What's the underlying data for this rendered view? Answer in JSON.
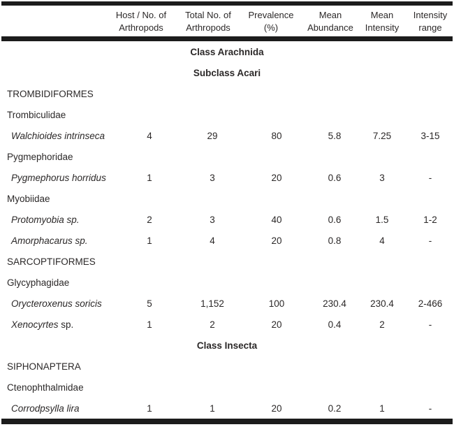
{
  "table": {
    "columns": [
      {
        "key": "name",
        "label": ""
      },
      {
        "key": "host_no",
        "label": "Host / No. of\nArthropods"
      },
      {
        "key": "total_no",
        "label": "Total No. of\nArthropods"
      },
      {
        "key": "prevalence",
        "label": "Prevalence\n(%)"
      },
      {
        "key": "mean_abundance",
        "label": "Mean\nAbundance"
      },
      {
        "key": "mean_intensity",
        "label": "Mean\nIntensity"
      },
      {
        "key": "intensity_range",
        "label": "Intensity\nrange"
      }
    ],
    "value_shifts": [
      0,
      24,
      12,
      16,
      12,
      0,
      0
    ],
    "rows": [
      {
        "type": "section",
        "label": "Class Arachnida"
      },
      {
        "type": "section",
        "label": "Subclass Acari"
      },
      {
        "type": "order",
        "label": "TROMBIDIFORMES"
      },
      {
        "type": "family",
        "label": "Trombiculidae"
      },
      {
        "type": "species",
        "italic": "Walchioides intrinseca",
        "roman": "",
        "values": [
          "4",
          "29",
          "80",
          "5.8",
          "7.25",
          "3-15"
        ]
      },
      {
        "type": "family",
        "label": "Pygmephoridae"
      },
      {
        "type": "species",
        "italic": "Pygmephorus horridus",
        "roman": "",
        "values": [
          "1",
          "3",
          "20",
          "0.6",
          "3",
          "-"
        ]
      },
      {
        "type": "family",
        "label": "Myobiidae"
      },
      {
        "type": "species",
        "italic": "Protomyobia sp.",
        "roman": "",
        "values": [
          "2",
          "3",
          "40",
          "0.6",
          "1.5",
          "1-2"
        ]
      },
      {
        "type": "species",
        "italic": "Amorphacarus sp.",
        "roman": "",
        "values": [
          "1",
          "4",
          "20",
          "0.8",
          "4",
          "-"
        ]
      },
      {
        "type": "order",
        "label": "SARCOPTIFORMES"
      },
      {
        "type": "family",
        "label": "Glycyphagidae"
      },
      {
        "type": "species",
        "italic": "Orycteroxenus soricis",
        "roman": "",
        "values": [
          "5",
          "1,152",
          "100",
          "230.4",
          "230.4",
          "2-466"
        ]
      },
      {
        "type": "species",
        "italic": "Xenocyrtes",
        "roman": " sp.",
        "values": [
          "1",
          "2",
          "20",
          "0.4",
          "2",
          "-"
        ]
      },
      {
        "type": "section",
        "label": "Class Insecta"
      },
      {
        "type": "order",
        "label": "SIPHONAPTERA"
      },
      {
        "type": "family",
        "label": "Ctenophthalmidae"
      },
      {
        "type": "species",
        "italic": "Corrodpsylla lira",
        "roman": "",
        "values": [
          "1",
          "1",
          "20",
          "0.2",
          "1",
          "-"
        ]
      }
    ],
    "colors": {
      "rule": "#1c1c1c",
      "text": "#2b2828",
      "background": "#ffffff"
    }
  }
}
